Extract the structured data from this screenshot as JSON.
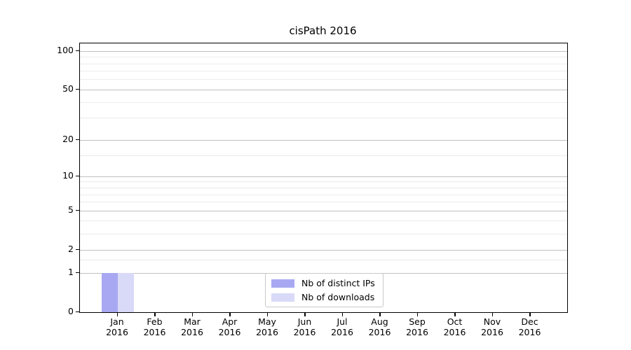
{
  "chart_data": {
    "type": "bar",
    "title": "cisPath 2016",
    "categories": [
      "Jan",
      "Feb",
      "Mar",
      "Apr",
      "May",
      "Jun",
      "Jul",
      "Aug",
      "Sep",
      "Oct",
      "Nov",
      "Dec"
    ],
    "category_year": "2016",
    "series": [
      {
        "name": "Nb of distinct IPs",
        "color": "#a8a8f2",
        "values": [
          1,
          0,
          0,
          0,
          0,
          0,
          0,
          0,
          0,
          0,
          0,
          0
        ]
      },
      {
        "name": "Nb of downloads",
        "color": "#d9d9f8",
        "values": [
          1,
          0,
          0,
          0,
          0,
          0,
          0,
          0,
          0,
          0,
          0,
          0
        ]
      }
    ],
    "y_axis": {
      "scale": "log1p",
      "major_ticks": [
        0,
        1,
        2,
        5,
        10,
        20,
        50,
        100
      ],
      "minor_ticks": [
        1.5,
        3,
        4,
        6,
        7,
        8,
        9,
        15,
        30,
        40,
        60,
        70,
        80,
        90
      ],
      "max": 115
    },
    "x_axis": {
      "label_lines": 2
    },
    "grid": "horizontal",
    "legend_position": "lower-center-inside"
  },
  "colors": {
    "grid_major": "#bfbfbf",
    "grid_minor": "#ececec",
    "axis_line": "#000000",
    "legend_border": "#c9c9c9",
    "background": "#ffffff",
    "text": "#000000"
  }
}
